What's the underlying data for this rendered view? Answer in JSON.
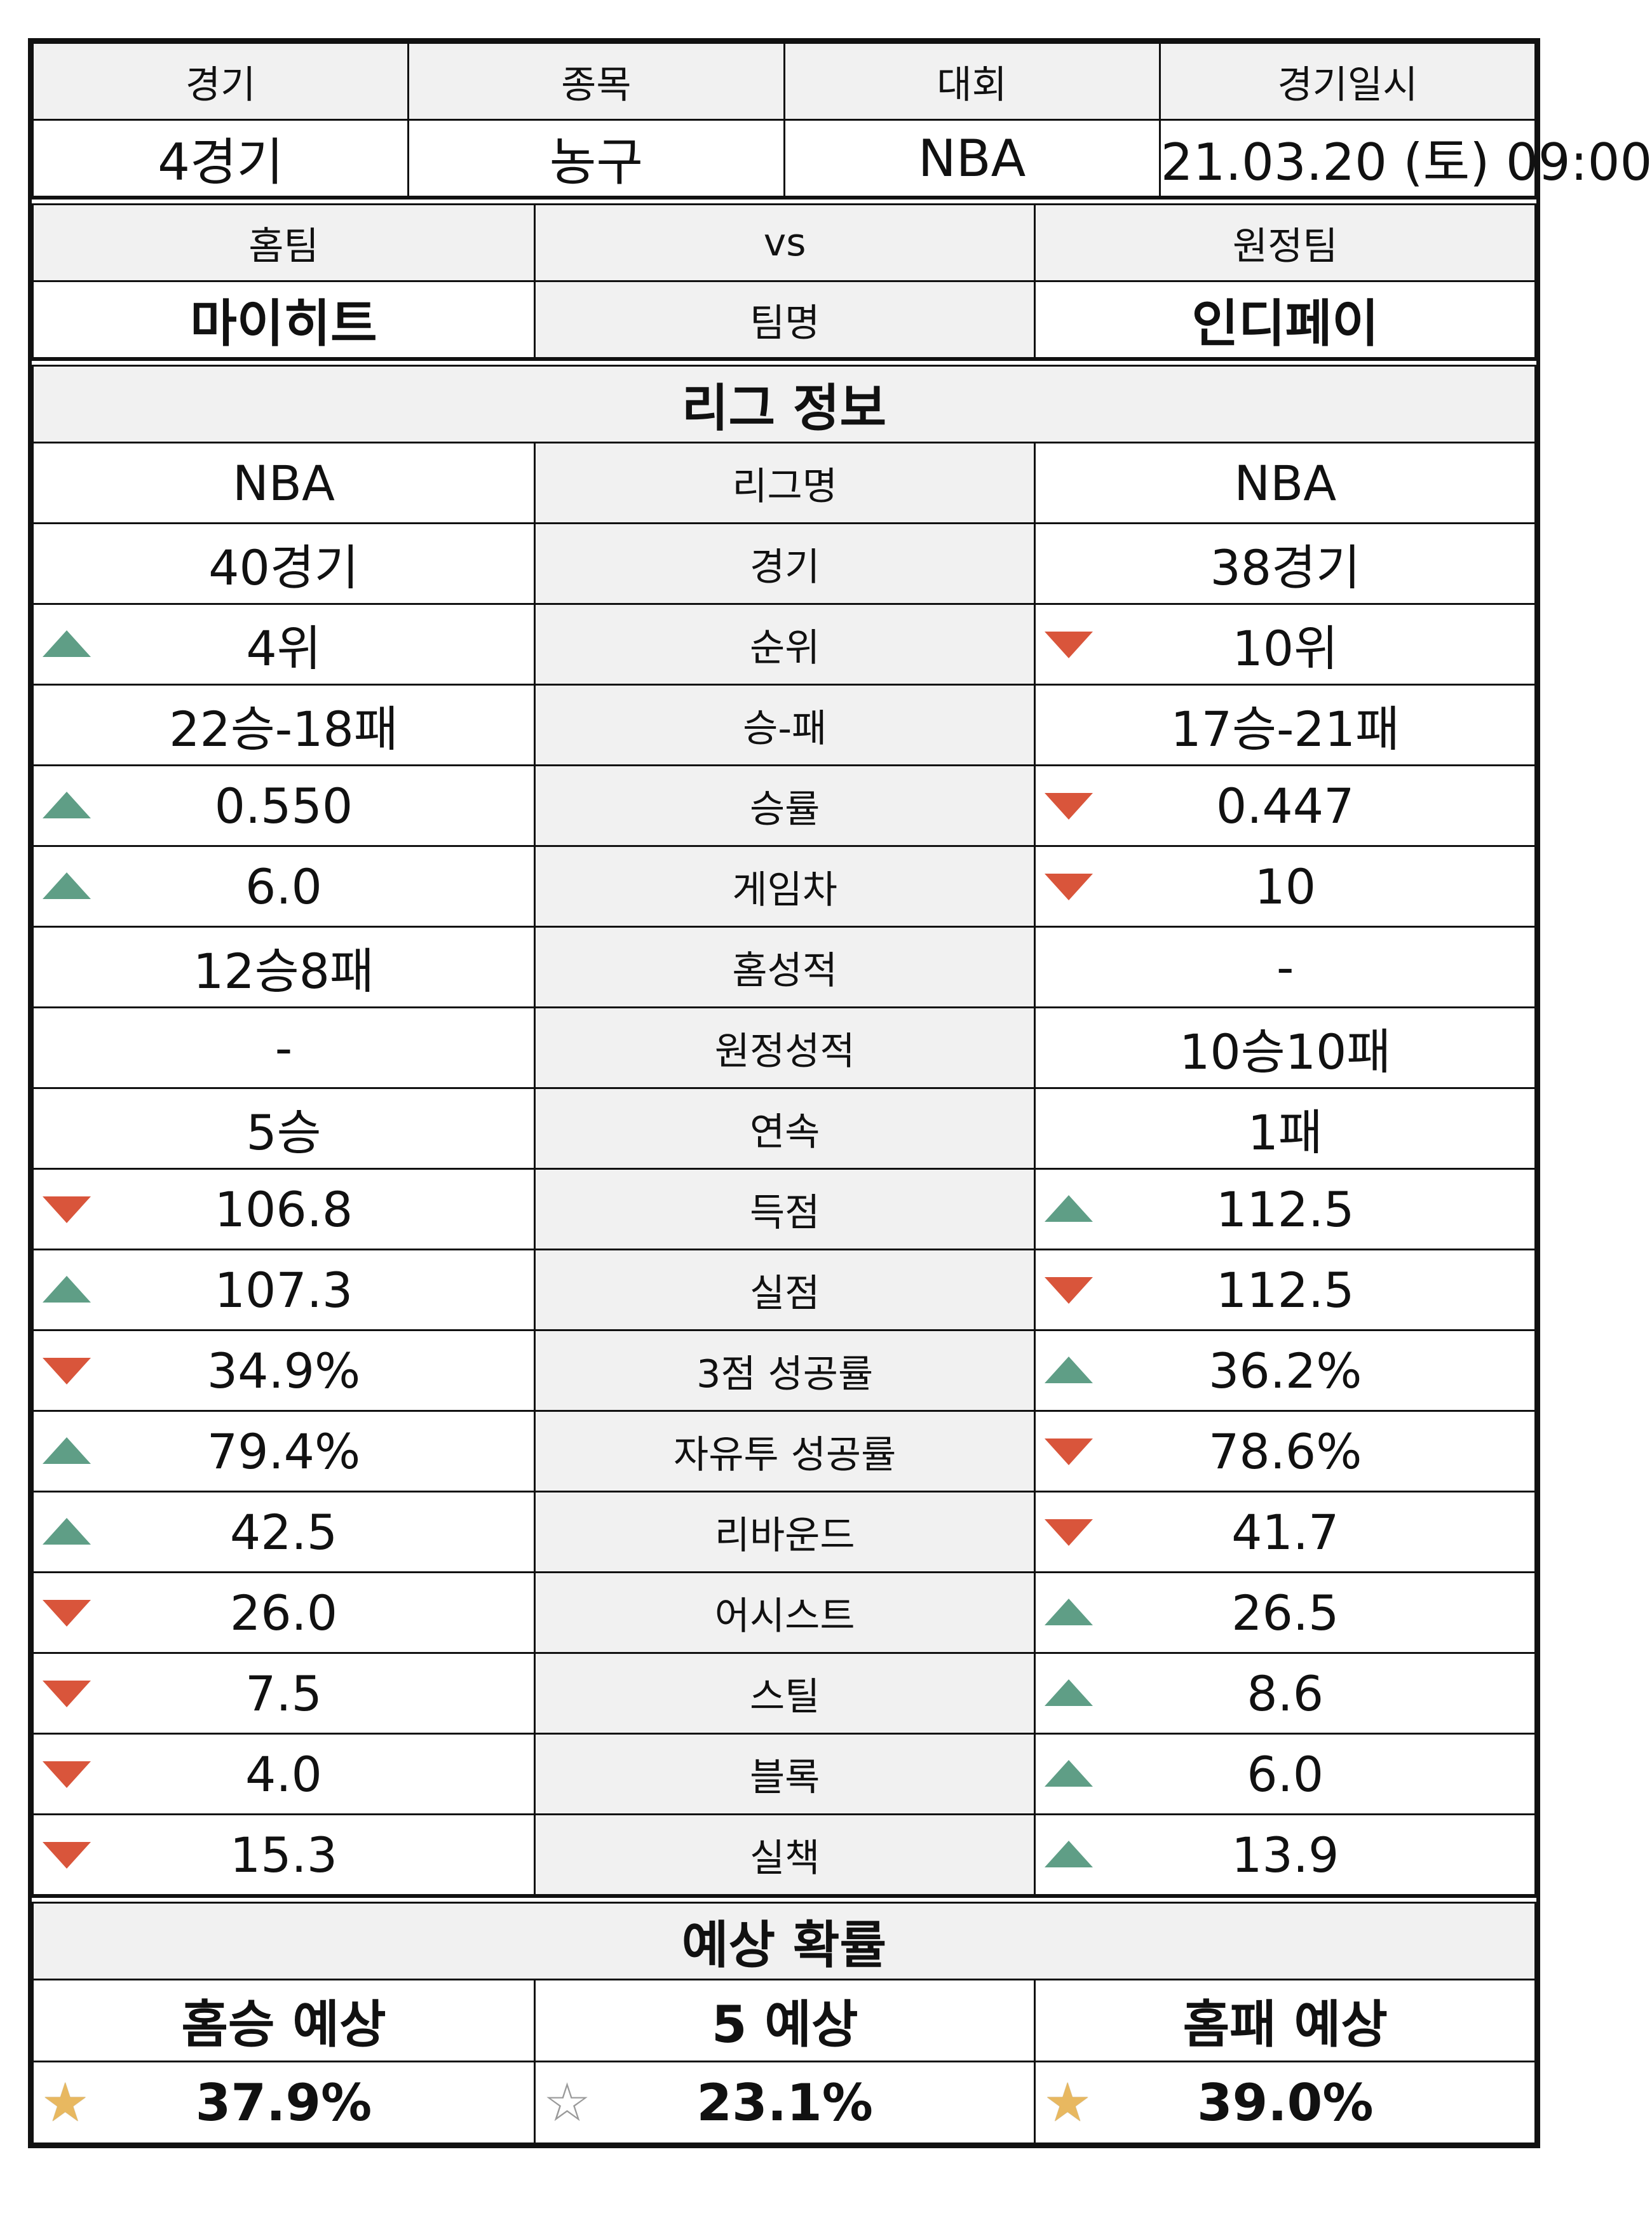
{
  "match": {
    "headers": [
      "경기",
      "종목",
      "대회",
      "경기일시"
    ],
    "values": [
      "4경기",
      "농구",
      "NBA",
      "21.03.20 (토) 09:00"
    ]
  },
  "teams": {
    "home_label": "홈팀",
    "vs_label": "vs",
    "away_label": "원정팀",
    "home_name": "마이히트",
    "name_label": "팀명",
    "away_name": "인디페이"
  },
  "league": {
    "title": "리그 정보",
    "rows": [
      {
        "label": "리그명",
        "home": "NBA",
        "away": "NBA",
        "home_arrow": "",
        "away_arrow": ""
      },
      {
        "label": "경기",
        "home": "40경기",
        "away": "38경기",
        "home_arrow": "",
        "away_arrow": ""
      },
      {
        "label": "순위",
        "home": "4위",
        "away": "10위",
        "home_arrow": "up",
        "away_arrow": "down"
      },
      {
        "label": "승-패",
        "home": "22승-18패",
        "away": "17승-21패",
        "home_arrow": "",
        "away_arrow": ""
      },
      {
        "label": "승률",
        "home": "0.550",
        "away": "0.447",
        "home_arrow": "up",
        "away_arrow": "down"
      },
      {
        "label": "게임차",
        "home": "6.0",
        "away": "10",
        "home_arrow": "up",
        "away_arrow": "down"
      },
      {
        "label": "홈성적",
        "home": "12승8패",
        "away": "-",
        "home_arrow": "",
        "away_arrow": ""
      },
      {
        "label": "원정성적",
        "home": "-",
        "away": "10승10패",
        "home_arrow": "",
        "away_arrow": ""
      },
      {
        "label": "연속",
        "home": "5승",
        "away": "1패",
        "home_arrow": "",
        "away_arrow": ""
      },
      {
        "label": "득점",
        "home": "106.8",
        "away": "112.5",
        "home_arrow": "down",
        "away_arrow": "up"
      },
      {
        "label": "실점",
        "home": "107.3",
        "away": "112.5",
        "home_arrow": "up",
        "away_arrow": "down"
      },
      {
        "label": "3점 성공률",
        "home": "34.9%",
        "away": "36.2%",
        "home_arrow": "down",
        "away_arrow": "up"
      },
      {
        "label": "자유투 성공률",
        "home": "79.4%",
        "away": "78.6%",
        "home_arrow": "up",
        "away_arrow": "down"
      },
      {
        "label": "리바운드",
        "home": "42.5",
        "away": "41.7",
        "home_arrow": "up",
        "away_arrow": "down"
      },
      {
        "label": "어시스트",
        "home": "26.0",
        "away": "26.5",
        "home_arrow": "down",
        "away_arrow": "up"
      },
      {
        "label": "스틸",
        "home": "7.5",
        "away": "8.6",
        "home_arrow": "down",
        "away_arrow": "up"
      },
      {
        "label": "블록",
        "home": "4.0",
        "away": "6.0",
        "home_arrow": "down",
        "away_arrow": "up"
      },
      {
        "label": "실책",
        "home": "15.3",
        "away": "13.9",
        "home_arrow": "down",
        "away_arrow": "up"
      }
    ]
  },
  "prediction": {
    "title": "예상 확률",
    "headers": [
      "홈승 예상",
      "5 예상",
      "홈패 예상"
    ],
    "values": [
      "37.9%",
      "23.1%",
      "39.0%"
    ],
    "stars": [
      "filled",
      "empty",
      "filled"
    ]
  },
  "colors": {
    "up_arrow": "#5f9e86",
    "down_arrow": "#d9553b",
    "star_filled": "#e8b860",
    "header_bg": "#f1f1f1"
  },
  "icons": {
    "up": "triangle-up-icon",
    "down": "triangle-down-icon",
    "star": "star-icon"
  }
}
